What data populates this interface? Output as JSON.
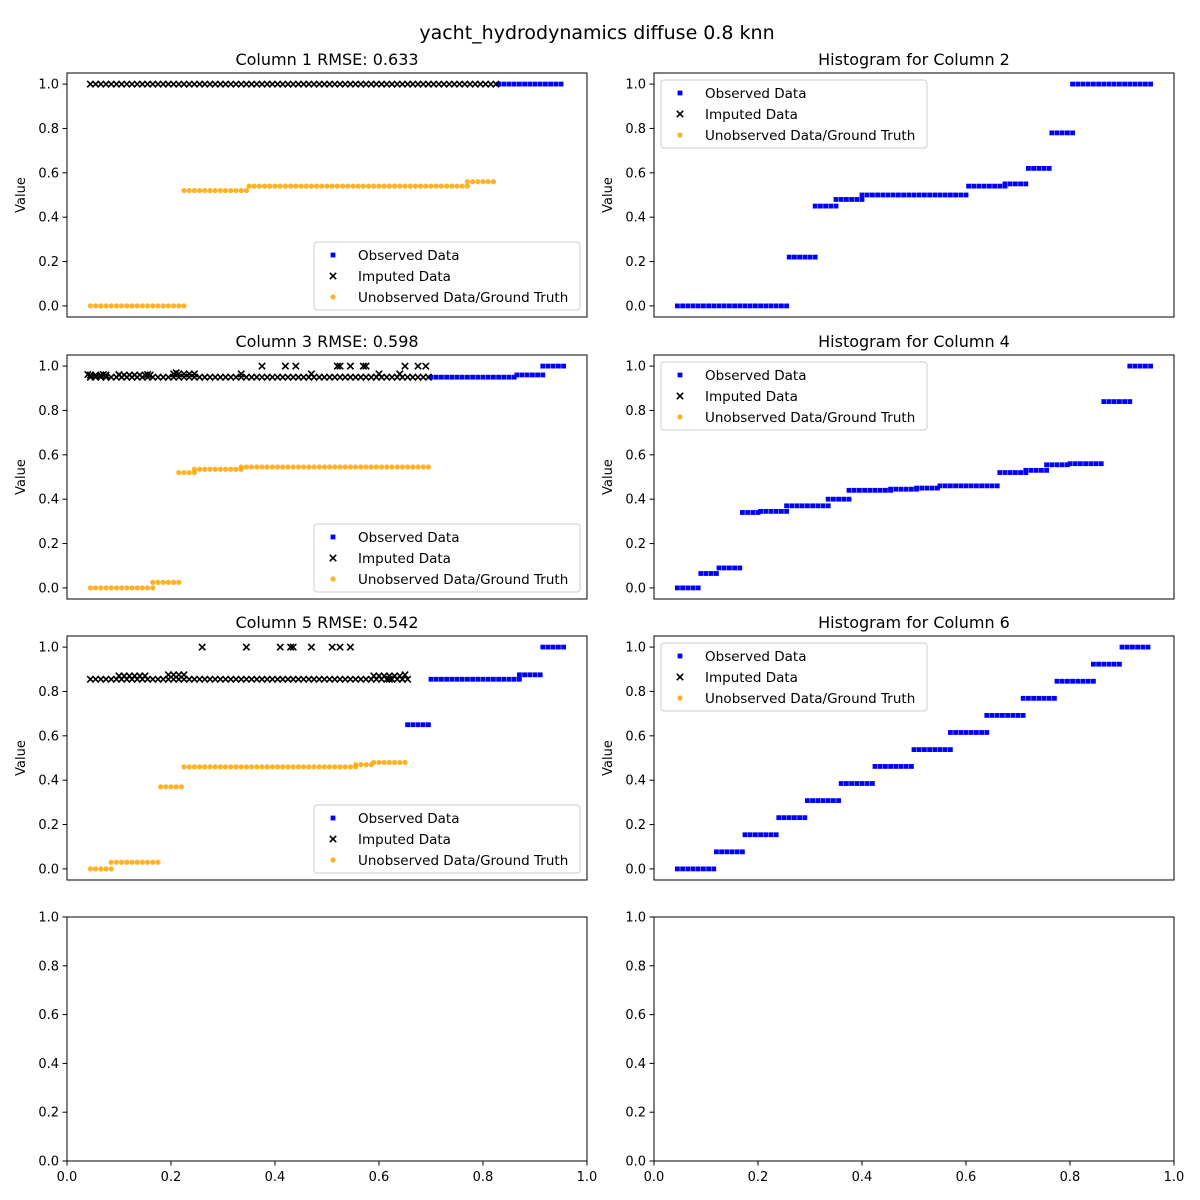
{
  "figure": {
    "suptitle": "yacht_hydrodynamics diffuse 0.8 knn"
  },
  "legend_labels": [
    "Observed Data",
    "Imputed Data",
    "Unobserved Data/Ground Truth"
  ],
  "colors": {
    "observed": "#0000ff",
    "imputed": "#000000",
    "unobserved": "#ffa500"
  },
  "chart_data": [
    {
      "type": "scatter",
      "title": "Column 1 RMSE: 0.633",
      "ylabel": "Value",
      "xlim": [
        0.0,
        1.0
      ],
      "ylim": [
        -0.05,
        1.05
      ],
      "x_ticks_visible": false,
      "yticks": [
        "0.0",
        "0.2",
        "0.4",
        "0.6",
        "0.8",
        "1.0"
      ],
      "legend": "lower-right",
      "series": [
        {
          "name": "Observed Data",
          "segments": [
            [
              0.83,
              0.955,
              1.0
            ]
          ]
        },
        {
          "name": "Imputed Data",
          "segments": [
            [
              0.045,
              0.83,
              1.0
            ]
          ]
        },
        {
          "name": "Unobserved Data/Ground Truth",
          "segments": [
            [
              0.045,
              0.225,
              0.0
            ],
            [
              0.225,
              0.35,
              0.52
            ],
            [
              0.35,
              0.77,
              0.54
            ],
            [
              0.77,
              0.825,
              0.56
            ]
          ]
        }
      ]
    },
    {
      "type": "scatter",
      "title": "Histogram for Column 2",
      "ylabel": "Value",
      "xlim": [
        0.0,
        1.0
      ],
      "ylim": [
        -0.05,
        1.05
      ],
      "x_ticks_visible": false,
      "yticks": [
        "0.0",
        "0.2",
        "0.4",
        "0.6",
        "0.8",
        "1.0"
      ],
      "legend": "upper-left",
      "series": [
        {
          "name": "Observed Data",
          "segments": [
            [
              0.045,
              0.26,
              0.0
            ],
            [
              0.26,
              0.31,
              0.22
            ],
            [
              0.31,
              0.35,
              0.45
            ],
            [
              0.35,
              0.4,
              0.48
            ],
            [
              0.4,
              0.605,
              0.5
            ],
            [
              0.605,
              0.675,
              0.54
            ],
            [
              0.675,
              0.72,
              0.55
            ],
            [
              0.72,
              0.765,
              0.62
            ],
            [
              0.765,
              0.805,
              0.78
            ],
            [
              0.805,
              0.955,
              1.0
            ]
          ]
        },
        {
          "name": "Imputed Data",
          "segments": []
        },
        {
          "name": "Unobserved Data/Ground Truth",
          "segments": []
        }
      ]
    },
    {
      "type": "scatter",
      "title": "Column 3 RMSE: 0.598",
      "ylabel": "Value",
      "xlim": [
        0.0,
        1.0
      ],
      "ylim": [
        -0.05,
        1.05
      ],
      "x_ticks_visible": false,
      "yticks": [
        "0.0",
        "0.2",
        "0.4",
        "0.6",
        "0.8",
        "1.0"
      ],
      "legend": "lower-right",
      "series": [
        {
          "name": "Observed Data",
          "segments": [
            [
              0.7,
              0.865,
              0.95
            ],
            [
              0.865,
              0.915,
              0.96
            ],
            [
              0.915,
              0.955,
              1.0
            ]
          ]
        },
        {
          "name": "Imputed Data",
          "segments": [
            [
              0.045,
              0.7,
              0.95
            ],
            [
              0.045,
              0.08,
              0.96
            ],
            [
              0.1,
              0.16,
              0.96
            ],
            [
              0.205,
              0.245,
              0.965
            ]
          ],
          "points": [
            [
              0.04,
              0.962
            ],
            [
              0.07,
              0.962
            ],
            [
              0.1,
              0.962
            ],
            [
              0.155,
              0.962
            ],
            [
              0.21,
              0.97
            ],
            [
              0.335,
              0.965
            ],
            [
              0.375,
              1.0
            ],
            [
              0.42,
              1.0
            ],
            [
              0.44,
              1.0
            ],
            [
              0.47,
              0.965
            ],
            [
              0.52,
              1.0
            ],
            [
              0.525,
              1.0
            ],
            [
              0.545,
              1.0
            ],
            [
              0.57,
              1.0
            ],
            [
              0.575,
              1.0
            ],
            [
              0.65,
              1.0
            ],
            [
              0.675,
              1.0
            ],
            [
              0.69,
              1.0
            ],
            [
              0.6,
              0.965
            ],
            [
              0.64,
              0.965
            ]
          ]
        },
        {
          "name": "Unobserved Data/Ground Truth",
          "segments": [
            [
              0.045,
              0.165,
              0.0
            ],
            [
              0.165,
              0.215,
              0.025
            ],
            [
              0.215,
              0.245,
              0.52
            ],
            [
              0.245,
              0.335,
              0.535
            ],
            [
              0.335,
              0.7,
              0.545
            ]
          ]
        }
      ]
    },
    {
      "type": "scatter",
      "title": "Histogram for Column 4",
      "ylabel": "Value",
      "xlim": [
        0.0,
        1.0
      ],
      "ylim": [
        -0.05,
        1.05
      ],
      "x_ticks_visible": false,
      "yticks": [
        "0.0",
        "0.2",
        "0.4",
        "0.6",
        "0.8",
        "1.0"
      ],
      "legend": "upper-left",
      "series": [
        {
          "name": "Observed Data",
          "segments": [
            [
              0.045,
              0.09,
              0.0
            ],
            [
              0.09,
              0.125,
              0.065
            ],
            [
              0.125,
              0.17,
              0.09
            ],
            [
              0.17,
              0.205,
              0.34
            ],
            [
              0.205,
              0.255,
              0.345
            ],
            [
              0.255,
              0.335,
              0.37
            ],
            [
              0.335,
              0.375,
              0.4
            ],
            [
              0.375,
              0.455,
              0.44
            ],
            [
              0.455,
              0.505,
              0.445
            ],
            [
              0.505,
              0.55,
              0.45
            ],
            [
              0.55,
              0.665,
              0.46
            ],
            [
              0.665,
              0.715,
              0.52
            ],
            [
              0.715,
              0.755,
              0.53
            ],
            [
              0.755,
              0.8,
              0.555
            ],
            [
              0.8,
              0.865,
              0.56
            ],
            [
              0.865,
              0.915,
              0.84
            ],
            [
              0.915,
              0.955,
              1.0
            ]
          ]
        },
        {
          "name": "Imputed Data",
          "segments": []
        },
        {
          "name": "Unobserved Data/Ground Truth",
          "segments": []
        }
      ]
    },
    {
      "type": "scatter",
      "title": "Column 5 RMSE: 0.542",
      "ylabel": "Value",
      "xlim": [
        0.0,
        1.0
      ],
      "ylim": [
        -0.05,
        1.05
      ],
      "x_ticks_visible": false,
      "yticks": [
        "0.0",
        "0.2",
        "0.4",
        "0.6",
        "0.8",
        "1.0"
      ],
      "legend": "lower-right",
      "series": [
        {
          "name": "Observed Data",
          "segments": [
            [
              0.655,
              0.7,
              0.65
            ],
            [
              0.7,
              0.87,
              0.855
            ],
            [
              0.87,
              0.915,
              0.875
            ],
            [
              0.915,
              0.955,
              1.0
            ]
          ]
        },
        {
          "name": "Imputed Data",
          "segments": [
            [
              0.045,
              0.655,
              0.855
            ],
            [
              0.1,
              0.155,
              0.87
            ],
            [
              0.195,
              0.23,
              0.875
            ],
            [
              0.59,
              0.645,
              0.87
            ]
          ],
          "points": [
            [
              0.26,
              1.0
            ],
            [
              0.345,
              1.0
            ],
            [
              0.41,
              1.0
            ],
            [
              0.43,
              1.0
            ],
            [
              0.435,
              1.0
            ],
            [
              0.47,
              1.0
            ],
            [
              0.51,
              1.0
            ],
            [
              0.525,
              1.0
            ],
            [
              0.545,
              1.0
            ],
            [
              0.62,
              0.855
            ],
            [
              0.645,
              0.855
            ],
            [
              0.65,
              0.875
            ]
          ]
        },
        {
          "name": "Unobserved Data/Ground Truth",
          "segments": [
            [
              0.045,
              0.085,
              0.0
            ],
            [
              0.085,
              0.18,
              0.03
            ],
            [
              0.18,
              0.225,
              0.37
            ],
            [
              0.225,
              0.555,
              0.46
            ],
            [
              0.555,
              0.59,
              0.47
            ],
            [
              0.59,
              0.655,
              0.48
            ]
          ]
        }
      ]
    },
    {
      "type": "scatter",
      "title": "Histogram for Column 6",
      "ylabel": "Value",
      "xlim": [
        0.0,
        1.0
      ],
      "ylim": [
        -0.05,
        1.05
      ],
      "x_ticks_visible": false,
      "yticks": [
        "0.0",
        "0.2",
        "0.4",
        "0.6",
        "0.8",
        "1.0"
      ],
      "legend": "upper-left",
      "series": [
        {
          "name": "Observed Data",
          "segments": [
            [
              0.045,
              0.12,
              0.0
            ],
            [
              0.12,
              0.175,
              0.077
            ],
            [
              0.175,
              0.24,
              0.154
            ],
            [
              0.24,
              0.295,
              0.231
            ],
            [
              0.295,
              0.36,
              0.308
            ],
            [
              0.36,
              0.425,
              0.385
            ],
            [
              0.425,
              0.5,
              0.462
            ],
            [
              0.5,
              0.57,
              0.538
            ],
            [
              0.57,
              0.64,
              0.615
            ],
            [
              0.64,
              0.71,
              0.692
            ],
            [
              0.71,
              0.775,
              0.769
            ],
            [
              0.775,
              0.845,
              0.846
            ],
            [
              0.845,
              0.9,
              0.923
            ],
            [
              0.9,
              0.955,
              1.0
            ]
          ]
        },
        {
          "name": "Imputed Data",
          "segments": []
        },
        {
          "name": "Unobserved Data/Ground Truth",
          "segments": []
        }
      ]
    },
    {
      "type": "scatter",
      "title": "",
      "ylabel": "",
      "xlim": [
        0.0,
        1.0
      ],
      "ylim": [
        0.0,
        1.0
      ],
      "x_ticks_visible": true,
      "xticks": [
        "0.0",
        "0.2",
        "0.4",
        "0.6",
        "0.8",
        "1.0"
      ],
      "yticks": [
        "0.0",
        "0.2",
        "0.4",
        "0.6",
        "0.8",
        "1.0"
      ],
      "legend": "none",
      "series": []
    },
    {
      "type": "scatter",
      "title": "",
      "ylabel": "",
      "xlim": [
        0.0,
        1.0
      ],
      "ylim": [
        0.0,
        1.0
      ],
      "x_ticks_visible": true,
      "xticks": [
        "0.0",
        "0.2",
        "0.4",
        "0.6",
        "0.8",
        "1.0"
      ],
      "yticks": [
        "0.0",
        "0.2",
        "0.4",
        "0.6",
        "0.8",
        "1.0"
      ],
      "legend": "none",
      "series": []
    }
  ]
}
